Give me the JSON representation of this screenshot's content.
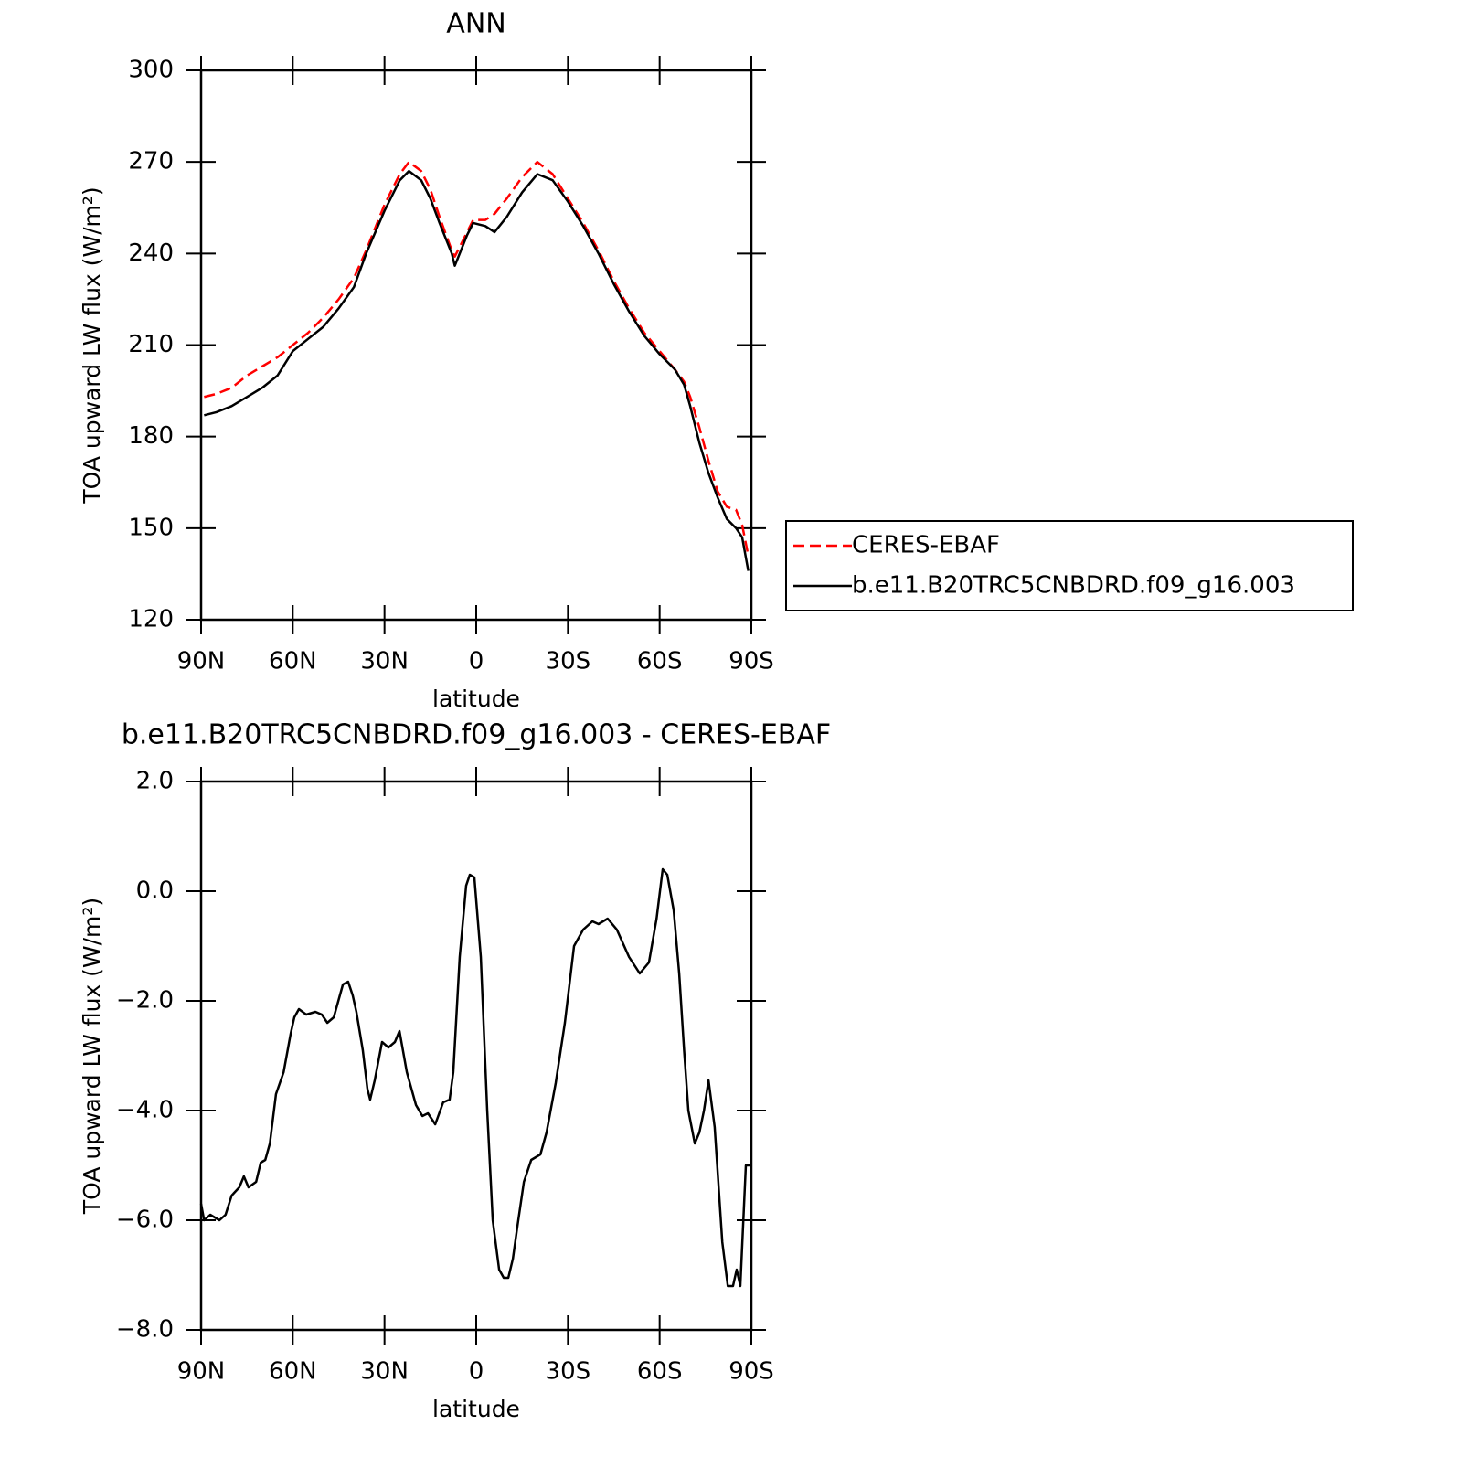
{
  "chart_data": [
    {
      "type": "line",
      "title": "ANN",
      "x_label": "latitude",
      "y_label": "TOA upward LW flux (W/m²)",
      "x": [
        89,
        85,
        80,
        75,
        70,
        65,
        60,
        55,
        50,
        45,
        40,
        36,
        30,
        25,
        22,
        18,
        15,
        12,
        8,
        7,
        3,
        1,
        -3,
        -6,
        -10,
        -15,
        -20,
        -25,
        -30,
        -35,
        -40,
        -45,
        -50,
        -55,
        -60,
        -65,
        -68,
        -70,
        -73,
        -76,
        -79,
        -82,
        -85,
        -87,
        -89
      ],
      "series": [
        {
          "name": "CERES-EBAF",
          "color": "#ff0000",
          "dashed": true,
          "values": [
            193,
            194,
            196,
            200,
            203,
            206,
            210,
            214,
            219,
            225,
            232,
            241,
            256,
            266,
            270,
            267,
            261,
            252,
            241,
            239,
            247,
            251,
            251,
            253,
            258,
            265,
            270,
            266,
            258,
            250,
            241,
            231,
            222,
            214,
            208,
            202,
            198,
            193,
            183,
            172,
            162,
            157,
            156,
            151,
            141
          ]
        },
        {
          "name": "b.e11.B20TRC5CNBDRD.f09_g16.003",
          "color": "#000000",
          "dashed": false,
          "values": [
            187,
            188,
            190,
            193,
            196,
            200,
            208,
            212,
            216,
            222,
            229,
            240,
            254,
            264,
            267,
            264,
            258,
            250,
            240,
            236,
            246,
            250,
            249,
            247,
            252,
            260,
            266,
            264,
            257,
            249,
            240,
            230,
            221,
            213,
            207,
            202,
            197,
            190,
            178,
            168,
            160,
            153,
            150,
            147,
            136
          ]
        }
      ],
      "xlim": [
        90,
        -90
      ],
      "xticks": [
        {
          "value": 90,
          "label": "90N"
        },
        {
          "value": 60,
          "label": "60N"
        },
        {
          "value": 30,
          "label": "30N"
        },
        0,
        {
          "value": -30,
          "label": "30S"
        },
        {
          "value": -60,
          "label": "60S"
        },
        {
          "value": -90,
          "label": "90S"
        }
      ],
      "ylim": [
        120,
        300
      ],
      "yticks": [
        120,
        150,
        180,
        210,
        240,
        270,
        300
      ],
      "legend": "right"
    },
    {
      "type": "line",
      "title": "b.e11.B20TRC5CNBDRD.f09_g16.003 - CERES-EBAF",
      "x_label": "latitude",
      "y_label": "TOA upward LW flux (W/m²)",
      "x": [
        90,
        89,
        87,
        84,
        82,
        80,
        77.5,
        76,
        74.5,
        72,
        70.5,
        69,
        67.5,
        65.5,
        63,
        60.7,
        59.5,
        58,
        55.6,
        52.6,
        50.5,
        48.7,
        46.6,
        45.1,
        43.6,
        41.9,
        40.4,
        39.2,
        37.1,
        35.6,
        34.7,
        33.2,
        30.8,
        28.7,
        26.6,
        25.1,
        22.7,
        19.7,
        17.6,
        15.8,
        13.4,
        10.8,
        8.7,
        7.5,
        5.4,
        3.3,
        2.1,
        0.6,
        -1.5,
        -3.6,
        -5.4,
        -7.5,
        -9,
        -10.5,
        -12,
        -13.5,
        -15.6,
        -18,
        -21,
        -23,
        -26,
        -29,
        -32,
        -35,
        -38,
        -40,
        -43,
        -46,
        -50,
        -53.5,
        -56.5,
        -59,
        -61,
        -62.5,
        -64.6,
        -66.4,
        -68,
        -69.4,
        -71.5,
        -73,
        -74.5,
        -76,
        -78,
        -80.5,
        -82.3,
        -84,
        -85.2,
        -86.4,
        -88.2,
        -89.4
      ],
      "color": "#000000",
      "values": [
        -5.7,
        -6.0,
        -5.9,
        -6.0,
        -5.9,
        -5.55,
        -5.4,
        -5.2,
        -5.4,
        -5.3,
        -4.95,
        -4.9,
        -4.6,
        -3.7,
        -3.3,
        -2.6,
        -2.3,
        -2.15,
        -2.25,
        -2.2,
        -2.25,
        -2.4,
        -2.3,
        -2.0,
        -1.7,
        -1.65,
        -1.9,
        -2.2,
        -2.9,
        -3.6,
        -3.8,
        -3.45,
        -2.75,
        -2.85,
        -2.75,
        -2.55,
        -3.3,
        -3.9,
        -4.1,
        -4.05,
        -4.25,
        -3.85,
        -3.8,
        -3.3,
        -1.2,
        0.1,
        0.3,
        0.25,
        -1.2,
        -4.0,
        -6.0,
        -6.9,
        -7.05,
        -7.05,
        -6.7,
        -6.1,
        -5.3,
        -4.9,
        -4.8,
        -4.4,
        -3.5,
        -2.4,
        -1.0,
        -0.7,
        -0.55,
        -0.6,
        -0.5,
        -0.7,
        -1.2,
        -1.5,
        -1.3,
        -0.5,
        0.4,
        0.3,
        -0.35,
        -1.5,
        -2.9,
        -4.0,
        -4.6,
        -4.4,
        -4.0,
        -3.45,
        -4.3,
        -6.4,
        -7.2,
        -7.2,
        -6.9,
        -7.2,
        -5.0,
        -5.0
      ],
      "xlim": [
        90,
        -90
      ],
      "xticks": [
        {
          "value": 90,
          "label": "90N"
        },
        {
          "value": 60,
          "label": "60N"
        },
        {
          "value": 30,
          "label": "30N"
        },
        0,
        {
          "value": -30,
          "label": "30S"
        },
        {
          "value": -60,
          "label": "60S"
        },
        {
          "value": -90,
          "label": "90S"
        }
      ],
      "ylim": [
        -8,
        2
      ],
      "yticks": [
        {
          "value": -8,
          "label": "−8.0"
        },
        {
          "value": -6,
          "label": "−6.0"
        },
        {
          "value": -4,
          "label": "−4.0"
        },
        {
          "value": -2,
          "label": "−2.0"
        },
        {
          "value": 0,
          "label": "0.0"
        },
        {
          "value": 2,
          "label": "2.0"
        }
      ]
    }
  ]
}
